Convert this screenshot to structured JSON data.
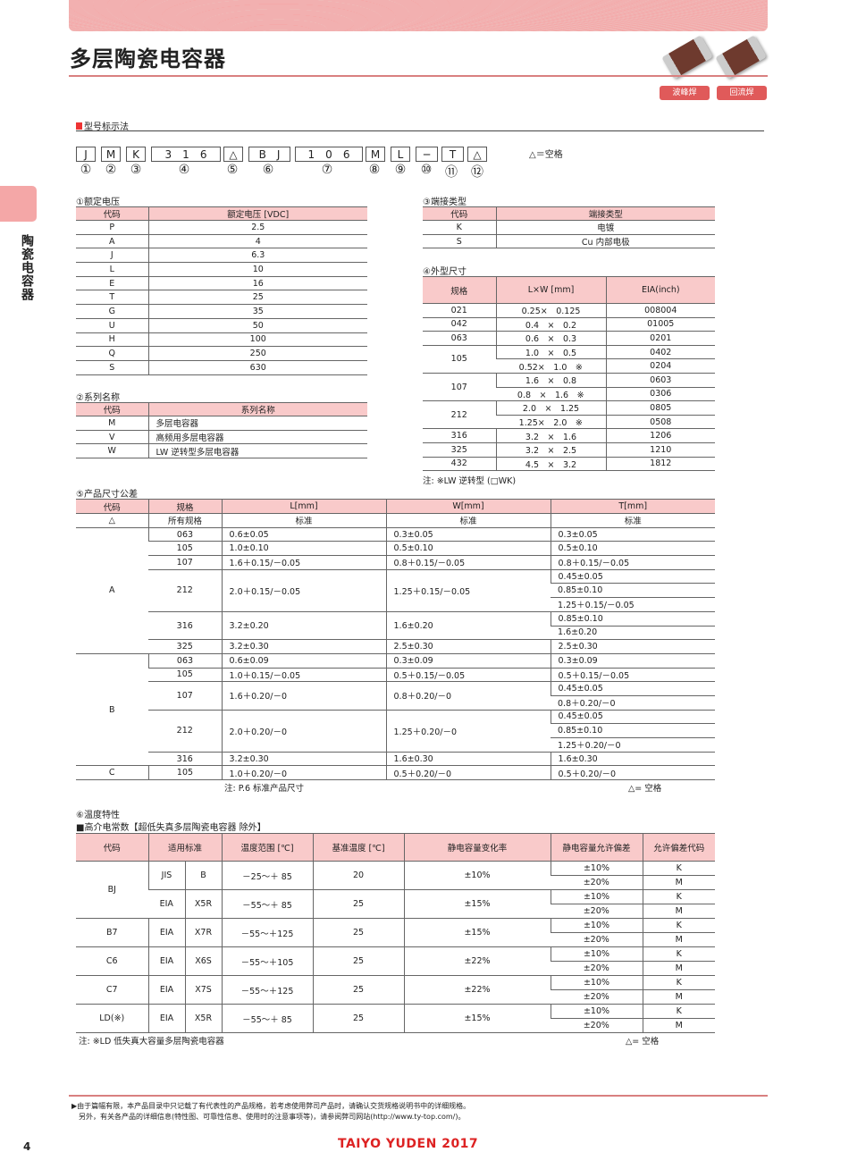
{
  "header": {
    "title": "多层陶瓷电容器",
    "badges": [
      "波峰焊",
      "回流焊"
    ]
  },
  "sidebar": {
    "label": "陶瓷电容器"
  },
  "part_number": {
    "heading": "型号标示法",
    "boxes": [
      "J",
      "M",
      "K",
      "3　1　6",
      "△",
      "B　J",
      "1　0　6",
      "M",
      "L",
      "─",
      "T",
      "△"
    ],
    "numbers": [
      "①",
      "②",
      "③",
      "④",
      "⑤",
      "⑥",
      "⑦",
      "⑧",
      "⑨",
      "⑩",
      "⑪",
      "⑫"
    ],
    "legend": "△＝空格"
  },
  "voltage": {
    "title": "①额定电压",
    "headers": [
      "代码",
      "额定电压 [VDC]"
    ],
    "rows": [
      [
        "P",
        "2.5"
      ],
      [
        "A",
        "4"
      ],
      [
        "J",
        "6.3"
      ],
      [
        "L",
        "10"
      ],
      [
        "E",
        "16"
      ],
      [
        "T",
        "25"
      ],
      [
        "G",
        "35"
      ],
      [
        "U",
        "50"
      ],
      [
        "H",
        "100"
      ],
      [
        "Q",
        "250"
      ],
      [
        "S",
        "630"
      ]
    ]
  },
  "series": {
    "title": "②系列名称",
    "headers": [
      "代码",
      "系列名称"
    ],
    "rows": [
      [
        "M",
        "多层电容器"
      ],
      [
        "V",
        "高频用多层电容器"
      ],
      [
        "W",
        "LW 逆转型多层电容器"
      ]
    ]
  },
  "termination": {
    "title": "③端接类型",
    "headers": [
      "代码",
      "端接类型"
    ],
    "rows": [
      [
        "K",
        "电镀"
      ],
      [
        "S",
        "Cu 内部电极"
      ]
    ]
  },
  "size": {
    "title": "④外型尺寸",
    "headers": [
      "规格",
      "L×W [mm]",
      "EIA(inch)"
    ],
    "rows": [
      [
        "021",
        "0.25×　0.125",
        "008004"
      ],
      [
        "042",
        "0.4　×　0.2",
        "01005"
      ],
      [
        "063",
        "0.6　×　0.3",
        "0201"
      ],
      [
        "105",
        "1.0　×　0.5",
        "0402"
      ],
      [
        "",
        "0.52×　1.0　※",
        "0204"
      ],
      [
        "107",
        "1.6　×　0.8",
        "0603"
      ],
      [
        "",
        "0.8　×　1.6　※",
        "0306"
      ],
      [
        "212",
        "2.0　×　1.25",
        "0805"
      ],
      [
        "",
        "1.25×　2.0　※",
        "0508"
      ],
      [
        "316",
        "3.2　×　1.6",
        "1206"
      ],
      [
        "325",
        "3.2　×　2.5",
        "1210"
      ],
      [
        "432",
        "4.5　×　3.2",
        "1812"
      ]
    ],
    "note": "注: ※LW 逆转型 (□WK)"
  },
  "tolerance": {
    "title": "⑤产品尺寸公差",
    "headers": [
      "代码",
      "规格",
      "L[mm]",
      "W[mm]",
      "T[mm]"
    ],
    "first_row": [
      "△",
      "所有规格",
      "标准",
      "标准",
      "标准"
    ],
    "groups": [
      {
        "code": "A",
        "sizes": [
          {
            "size": "063",
            "L": "0.6±0.05",
            "W": "0.3±0.05",
            "T": [
              "0.3±0.05"
            ]
          },
          {
            "size": "105",
            "L": "1.0±0.10",
            "W": "0.5±0.10",
            "T": [
              "0.5±0.10"
            ]
          },
          {
            "size": "107",
            "L": "1.6＋0.15/－0.05",
            "W": "0.8＋0.15/－0.05",
            "T": [
              "0.8＋0.15/－0.05"
            ]
          },
          {
            "size": "212",
            "L": "2.0＋0.15/－0.05",
            "W": "1.25＋0.15/－0.05",
            "T": [
              "0.45±0.05",
              "0.85±0.10",
              "1.25＋0.15/－0.05"
            ]
          },
          {
            "size": "316",
            "L": "3.2±0.20",
            "W": "1.6±0.20",
            "T": [
              "0.85±0.10",
              "1.6±0.20"
            ]
          },
          {
            "size": "325",
            "L": "3.2±0.30",
            "W": "2.5±0.30",
            "T": [
              "2.5±0.30"
            ]
          }
        ]
      },
      {
        "code": "B",
        "sizes": [
          {
            "size": "063",
            "L": "0.6±0.09",
            "W": "0.3±0.09",
            "T": [
              "0.3±0.09"
            ]
          },
          {
            "size": "105",
            "L": "1.0＋0.15/－0.05",
            "W": "0.5＋0.15/－0.05",
            "T": [
              "0.5＋0.15/－0.05"
            ]
          },
          {
            "size": "107",
            "L": "1.6＋0.20/－0",
            "W": "0.8＋0.20/－0",
            "T": [
              "0.45±0.05",
              "0.8＋0.20/－0"
            ]
          },
          {
            "size": "212",
            "L": "2.0＋0.20/－0",
            "W": "1.25＋0.20/－0",
            "T": [
              "0.45±0.05",
              "0.85±0.10",
              "1.25＋0.20/－0"
            ]
          },
          {
            "size": "316",
            "L": "3.2±0.30",
            "W": "1.6±0.30",
            "T": [
              "1.6±0.30"
            ]
          }
        ]
      },
      {
        "code": "C",
        "sizes": [
          {
            "size": "105",
            "L": "1.0＋0.20/－0",
            "W": "0.5＋0.20/－0",
            "T": [
              "0.5＋0.20/－0"
            ]
          }
        ]
      }
    ],
    "note": "注: P.6 标准产品尺寸",
    "legend": "△= 空格"
  },
  "temperature": {
    "title": "⑥温度特性",
    "subtitle": "■高介电常数【超低失真多层陶瓷电容器 除外】",
    "headers": [
      "代码",
      "适用标准",
      "温度范围 [℃]",
      "基准温度 [℃]",
      "静电容量变化率",
      "静电容量允许偏差",
      "允许偏差代码"
    ],
    "groups": [
      {
        "code": "BJ",
        "rows": [
          [
            "JIS",
            "B",
            "－25～＋ 85",
            "20",
            "±10%"
          ],
          [
            "EIA",
            "X5R",
            "－55～＋ 85",
            "25",
            "±15%"
          ]
        ]
      },
      {
        "code": "B7",
        "rows": [
          [
            "EIA",
            "X7R",
            "－55～＋125",
            "25",
            "±15%"
          ]
        ]
      },
      {
        "code": "C6",
        "rows": [
          [
            "EIA",
            "X6S",
            "－55～＋105",
            "25",
            "±22%"
          ]
        ]
      },
      {
        "code": "C7",
        "rows": [
          [
            "EIA",
            "X7S",
            "－55～＋125",
            "25",
            "±22%"
          ]
        ]
      },
      {
        "code": "LD(※)",
        "rows": [
          [
            "EIA",
            "X5R",
            "－55～＋ 85",
            "25",
            "±15%"
          ]
        ]
      }
    ],
    "tolerances": [
      [
        "±10%",
        "K"
      ],
      [
        "±20%",
        "M"
      ]
    ],
    "note": "注: ※LD 低失真大容量多层陶瓷电容器",
    "legend": "△= 空格"
  },
  "footer": {
    "notes": [
      "由于篇幅有限，本产品目录中只记载了有代表性的产品规格，若考虑使用弊司产品时，请确认交货规格说明书中的详细规格。",
      "另外，有关各产品的详细信息(特性图、可靠性信息、使用时的注意事项等)，请参阅弊司网站(http://www.ty-top.com/)。"
    ],
    "page": "4",
    "brand": "TAIYO YUDEN  2017"
  }
}
